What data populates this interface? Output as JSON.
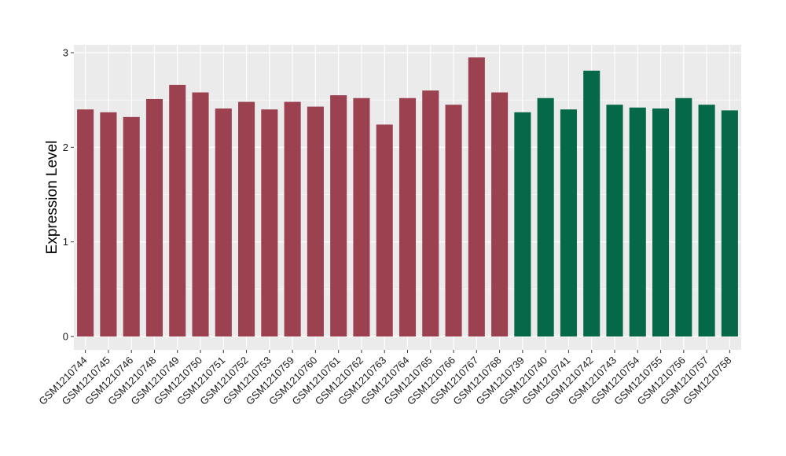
{
  "chart_data": {
    "type": "bar",
    "title": "",
    "xlabel": "",
    "ylabel": "Expression Level",
    "ylim": [
      0,
      3.05
    ],
    "yticks": [
      0,
      1,
      2,
      3
    ],
    "grid": true,
    "categories": [
      "GSM1210744",
      "GSM1210745",
      "GSM1210746",
      "GSM1210748",
      "GSM1210749",
      "GSM1210750",
      "GSM1210751",
      "GSM1210752",
      "GSM1210753",
      "GSM1210759",
      "GSM1210760",
      "GSM1210761",
      "GSM1210762",
      "GSM1210763",
      "GSM1210764",
      "GSM1210765",
      "GSM1210766",
      "GSM1210767",
      "GSM1210768",
      "GSM1210739",
      "GSM1210740",
      "GSM1210741",
      "GSM1210742",
      "GSM1210743",
      "GSM1210754",
      "GSM1210755",
      "GSM1210756",
      "GSM1210757",
      "GSM1210758"
    ],
    "values": [
      2.4,
      2.37,
      2.32,
      2.51,
      2.66,
      2.58,
      2.41,
      2.48,
      2.4,
      2.48,
      2.43,
      2.55,
      2.52,
      2.24,
      2.52,
      2.6,
      2.45,
      2.95,
      2.58,
      2.37,
      2.52,
      2.4,
      2.81,
      2.45,
      2.42,
      2.41,
      2.52,
      2.45,
      2.39
    ],
    "bar_colors": [
      "#9b4150",
      "#9b4150",
      "#9b4150",
      "#9b4150",
      "#9b4150",
      "#9b4150",
      "#9b4150",
      "#9b4150",
      "#9b4150",
      "#9b4150",
      "#9b4150",
      "#9b4150",
      "#9b4150",
      "#9b4150",
      "#9b4150",
      "#9b4150",
      "#9b4150",
      "#9b4150",
      "#9b4150",
      "#056848",
      "#056848",
      "#056848",
      "#056848",
      "#056848",
      "#056848",
      "#056848",
      "#056848",
      "#056848",
      "#056848"
    ],
    "panel_background": "#ebebeb",
    "grid_color": "#ffffff"
  }
}
